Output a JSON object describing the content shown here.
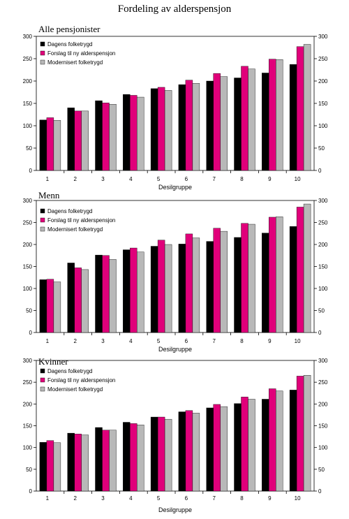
{
  "title": "Fordeling av alderspensjon",
  "colors": {
    "Dagens folketrygd": "#000000",
    "Forslag til ny alderspensjon": "#e0007a",
    "Modernisert folketrygd": "#b8b8b8"
  },
  "chart_data": [
    {
      "type": "bar",
      "title": "Alle pensjonister",
      "xlabel": "Desilgruppe",
      "ylabel": "",
      "ylim": [
        0,
        300
      ],
      "yticks": [
        0,
        50,
        100,
        150,
        200,
        250,
        300
      ],
      "secondary_axis": true,
      "legend_position": "top-left",
      "grid": false,
      "categories": [
        "1",
        "2",
        "3",
        "4",
        "5",
        "6",
        "7",
        "8",
        "9",
        "10"
      ],
      "series": [
        {
          "name": "Dagens folketrygd",
          "values": [
            113,
            140,
            156,
            170,
            183,
            192,
            200,
            207,
            218,
            237
          ]
        },
        {
          "name": "Forslag til ny alderspensjon",
          "values": [
            118,
            133,
            151,
            168,
            186,
            202,
            217,
            233,
            249,
            277
          ]
        },
        {
          "name": "Modernisert folketrygd",
          "values": [
            112,
            133,
            148,
            164,
            179,
            195,
            210,
            227,
            248,
            282
          ]
        }
      ]
    },
    {
      "type": "bar",
      "title": "Menn",
      "xlabel": "Desilgruppe",
      "ylabel": "",
      "ylim": [
        0,
        300
      ],
      "yticks": [
        0,
        50,
        100,
        150,
        200,
        250,
        300
      ],
      "secondary_axis": true,
      "legend_position": "top-left",
      "grid": false,
      "categories": [
        "1",
        "2",
        "3",
        "4",
        "5",
        "6",
        "7",
        "8",
        "9",
        "10"
      ],
      "series": [
        {
          "name": "Dagens folketrygd",
          "values": [
            120,
            158,
            176,
            188,
            196,
            201,
            207,
            216,
            226,
            241
          ]
        },
        {
          "name": "Forslag til ny alderspensjon",
          "values": [
            121,
            147,
            175,
            192,
            210,
            224,
            237,
            248,
            262,
            285
          ]
        },
        {
          "name": "Modernisert folketrygd",
          "values": [
            115,
            143,
            166,
            183,
            200,
            215,
            230,
            246,
            263,
            292
          ]
        }
      ]
    },
    {
      "type": "bar",
      "title": "Kvinner",
      "xlabel": "Desilgruppe",
      "ylabel": "",
      "ylim": [
        0,
        300
      ],
      "yticks": [
        0,
        50,
        100,
        150,
        200,
        250,
        300
      ],
      "secondary_axis": true,
      "legend_position": "top-left",
      "grid": false,
      "categories": [
        "1",
        "2",
        "3",
        "4",
        "5",
        "6",
        "7",
        "8",
        "9",
        "10"
      ],
      "series": [
        {
          "name": "Dagens folketrygd",
          "values": [
            112,
            133,
            146,
            158,
            170,
            182,
            191,
            201,
            211,
            232
          ]
        },
        {
          "name": "Forslag til ny alderspensjon",
          "values": [
            116,
            131,
            140,
            155,
            170,
            185,
            199,
            216,
            235,
            264
          ]
        },
        {
          "name": "Modernisert folketrygd",
          "values": [
            111,
            129,
            140,
            152,
            165,
            179,
            194,
            211,
            230,
            266
          ]
        }
      ]
    }
  ]
}
